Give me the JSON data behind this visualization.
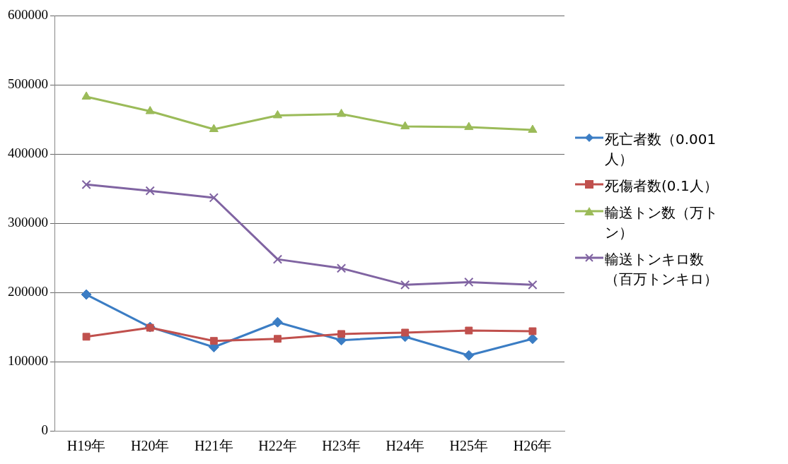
{
  "chart_data": {
    "type": "line",
    "categories": [
      "H19年",
      "H20年",
      "H21年",
      "H22年",
      "H23年",
      "H24年",
      "H25年",
      "H26年"
    ],
    "ylim": [
      0,
      600000
    ],
    "yticks": [
      0,
      100000,
      200000,
      300000,
      400000,
      500000,
      600000
    ],
    "grid": "y",
    "legend": "right",
    "line_style": "solid",
    "series": [
      {
        "name": "死亡者数（0.001人）",
        "color": "#3b7dc4",
        "marker": "diamond",
        "values": [
          197000,
          150000,
          121000,
          157000,
          131000,
          136000,
          109000,
          133000
        ]
      },
      {
        "name": "死傷者数(0.1人）",
        "color": "#c0504d",
        "marker": "square",
        "values": [
          136000,
          149000,
          130000,
          133000,
          140000,
          142000,
          145000,
          144000
        ]
      },
      {
        "name": "輸送トン数（万トン）",
        "color": "#9bbb59",
        "marker": "triangle",
        "values": [
          483000,
          462000,
          436000,
          456000,
          458000,
          440000,
          439000,
          435000
        ]
      },
      {
        "name": "輸送トンキロ数（百万トンキロ）",
        "color": "#8064a2",
        "marker": "cross",
        "values": [
          356000,
          347000,
          337000,
          248000,
          235000,
          211000,
          215000,
          211000
        ]
      }
    ]
  }
}
